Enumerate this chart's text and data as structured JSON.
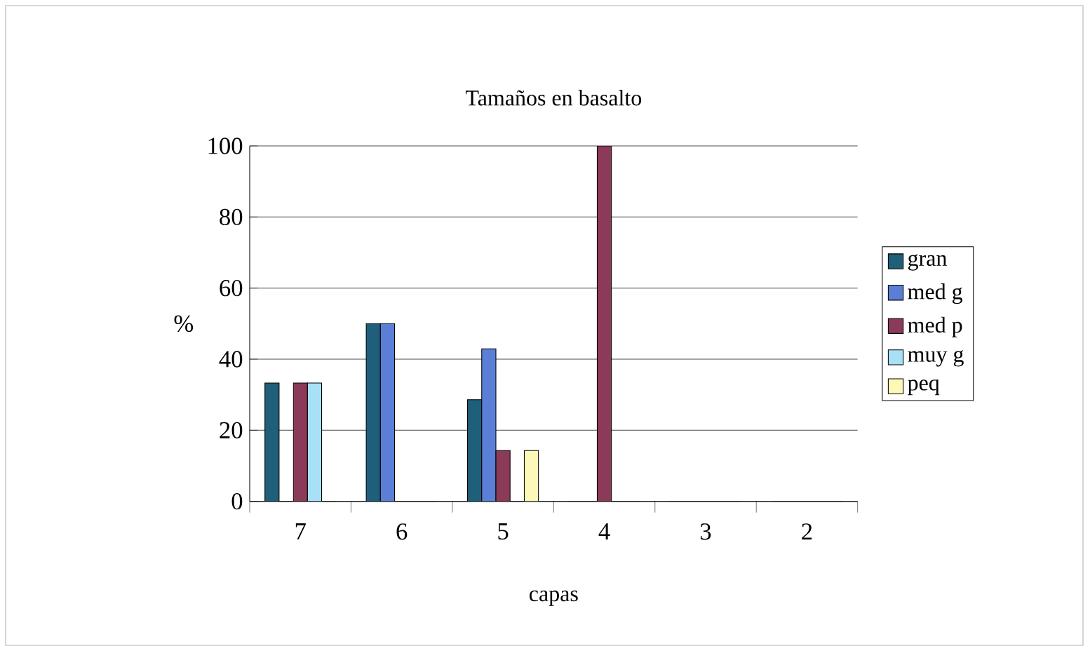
{
  "chart_data": {
    "type": "bar",
    "title": "Tamaños en basalto",
    "xlabel": "capas",
    "ylabel": "%",
    "categories": [
      "7",
      "6",
      "5",
      "4",
      "3",
      "2"
    ],
    "series": [
      {
        "name": "gran",
        "color": "#1f5f7a",
        "values": [
          33.3,
          50,
          28.6,
          0,
          0,
          0
        ]
      },
      {
        "name": "med g",
        "color": "#5b7fd6",
        "values": [
          0,
          50,
          42.9,
          0,
          0,
          0
        ]
      },
      {
        "name": "med p",
        "color": "#8c3a5a",
        "values": [
          33.3,
          0,
          14.3,
          100,
          0,
          0
        ]
      },
      {
        "name": "muy g",
        "color": "#a8e0f8",
        "values": [
          33.3,
          0,
          0,
          0,
          0,
          0
        ]
      },
      {
        "name": "peq",
        "color": "#fbf8b8",
        "values": [
          0,
          0,
          14.3,
          0,
          0,
          0
        ]
      }
    ],
    "ylim": [
      0,
      100
    ],
    "yticks": [
      0,
      20,
      40,
      60,
      80,
      100
    ],
    "grid": "y",
    "legend": "right"
  }
}
